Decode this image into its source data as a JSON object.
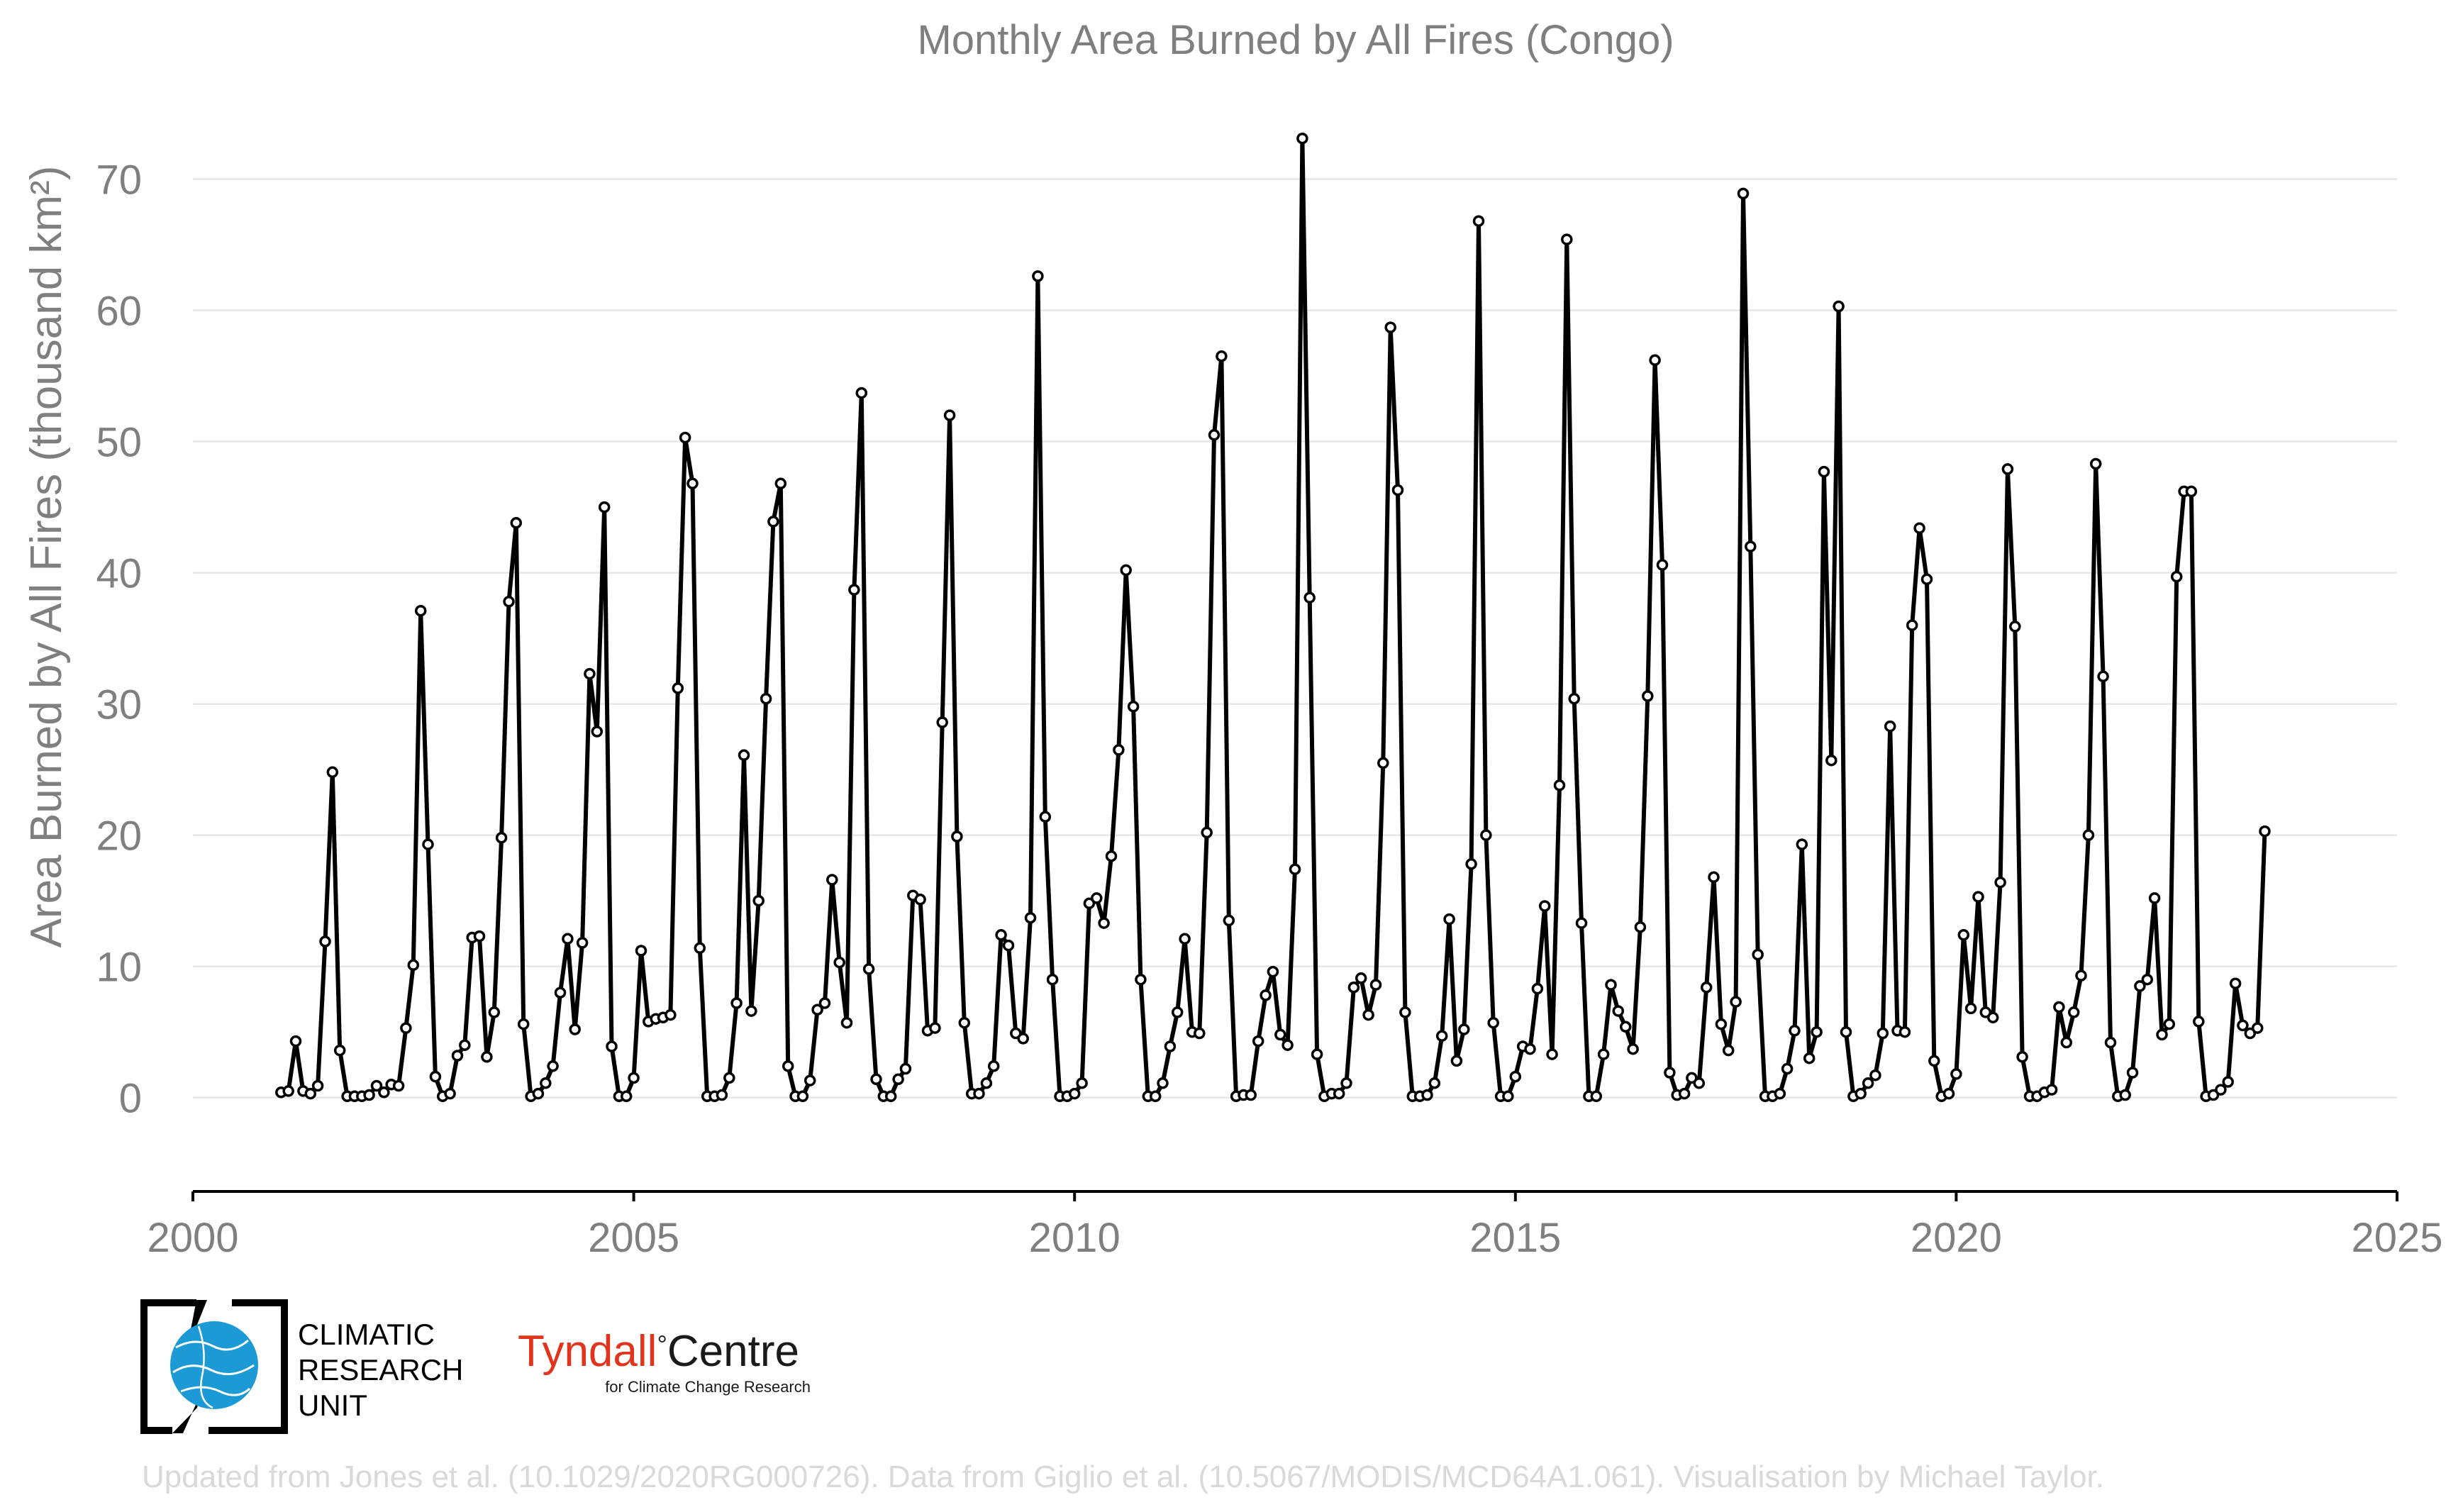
{
  "credit": "Updated from Jones et al. (10.1029/2020RG000726). Data from Giglio et al. (10.5067/MODIS/MCD64A1.061). Visualisation by Michael Taylor.",
  "logos": {
    "cru": {
      "lines": [
        "CLIMATIC",
        "RESEARCH",
        "UNIT"
      ],
      "globe_color": "#1b9ad6"
    },
    "tyndall": {
      "name": "Tyndall",
      "degree": "°",
      "suffix": "Centre",
      "tagline": "for Climate Change Research",
      "name_color": "#e2341d",
      "suffix_color": "#1a1a1a"
    }
  },
  "colors": {
    "line": "#000000",
    "marker_fill": "#ffffff",
    "grid": "#e6e6e6",
    "text": "#7f7f7f"
  },
  "chart_data": {
    "type": "line",
    "title": "Monthly Area Burned by All Fires (Congo)",
    "ylabel": "Area Burned by All Fires (thousand km²)",
    "xlabel": "",
    "xlim": [
      2000,
      2025
    ],
    "ylim": [
      -5.8,
      75
    ],
    "xticks": [
      2000,
      2005,
      2010,
      2015,
      2020,
      2025
    ],
    "yticks": [
      0,
      10,
      20,
      30,
      40,
      50,
      60,
      70
    ],
    "grid": "horizontal",
    "start": "2001-01",
    "frequency": "monthly",
    "series": [
      {
        "values": [
          0.4,
          0.5,
          4.3,
          0.5,
          0.3,
          0.9,
          11.9,
          24.8,
          3.6,
          0.1,
          0.1,
          0.1,
          0.2,
          0.9,
          0.4,
          1.0,
          0.9,
          5.3,
          10.1,
          37.1,
          19.3,
          1.6,
          0.1,
          0.3,
          3.2,
          4.0,
          12.2,
          12.3,
          3.1,
          6.5,
          19.8,
          37.8,
          43.8,
          5.6,
          0.1,
          0.3,
          1.1,
          2.4,
          8.0,
          12.1,
          5.2,
          11.8,
          32.3,
          27.9,
          45.0,
          3.9,
          0.1,
          0.1,
          1.5,
          11.2,
          5.8,
          6.0,
          6.1,
          6.3,
          31.2,
          50.3,
          46.8,
          11.4,
          0.1,
          0.1,
          0.2,
          1.5,
          7.2,
          26.1,
          6.6,
          15.0,
          30.4,
          43.9,
          46.8,
          2.4,
          0.1,
          0.1,
          1.3,
          6.7,
          7.2,
          16.6,
          10.3,
          5.7,
          38.7,
          53.7,
          9.8,
          1.4,
          0.1,
          0.1,
          1.4,
          2.2,
          15.4,
          15.1,
          5.1,
          5.3,
          28.6,
          52.0,
          19.9,
          5.7,
          0.3,
          0.3,
          1.1,
          2.4,
          12.4,
          11.6,
          4.9,
          4.5,
          13.7,
          62.6,
          21.4,
          9.0,
          0.1,
          0.1,
          0.3,
          1.1,
          14.8,
          15.2,
          13.3,
          18.4,
          26.5,
          40.2,
          29.8,
          9.0,
          0.1,
          0.1,
          1.1,
          3.9,
          6.5,
          12.1,
          5.0,
          4.9,
          20.2,
          50.5,
          56.5,
          13.5,
          0.1,
          0.2,
          0.2,
          4.3,
          7.8,
          9.6,
          4.8,
          4.0,
          17.4,
          73.1,
          38.1,
          3.3,
          0.1,
          0.3,
          0.3,
          1.1,
          8.4,
          9.1,
          6.3,
          8.6,
          25.5,
          58.7,
          46.3,
          6.5,
          0.1,
          0.1,
          0.2,
          1.1,
          4.7,
          13.6,
          2.8,
          5.2,
          17.8,
          66.8,
          20.0,
          5.7,
          0.1,
          0.1,
          1.6,
          3.9,
          3.7,
          8.3,
          14.6,
          3.3,
          23.8,
          65.4,
          30.4,
          13.3,
          0.1,
          0.1,
          3.3,
          8.6,
          6.6,
          5.4,
          3.7,
          13.0,
          30.6,
          56.2,
          40.6,
          1.9,
          0.2,
          0.3,
          1.5,
          1.1,
          8.4,
          16.8,
          5.6,
          3.6,
          7.3,
          68.9,
          42.0,
          10.9,
          0.1,
          0.1,
          0.3,
          2.2,
          5.1,
          19.3,
          3.0,
          5.0,
          47.7,
          25.7,
          60.3,
          5.0,
          0.1,
          0.3,
          1.1,
          1.7,
          4.9,
          28.3,
          5.1,
          5.0,
          36.0,
          43.4,
          39.5,
          2.8,
          0.1,
          0.3,
          1.8,
          12.4,
          6.8,
          15.3,
          6.5,
          6.1,
          16.4,
          47.9,
          35.9,
          3.1,
          0.1,
          0.1,
          0.4,
          0.6,
          6.9,
          4.2,
          6.5,
          9.3,
          20.0,
          48.3,
          32.1,
          4.2,
          0.1,
          0.2,
          1.9,
          8.5,
          9.0,
          15.2,
          4.8,
          5.6,
          39.7,
          46.2,
          46.2,
          5.8,
          0.1,
          0.2,
          0.6,
          1.2,
          8.7,
          5.5,
          4.9,
          5.3,
          20.3
        ]
      }
    ]
  }
}
